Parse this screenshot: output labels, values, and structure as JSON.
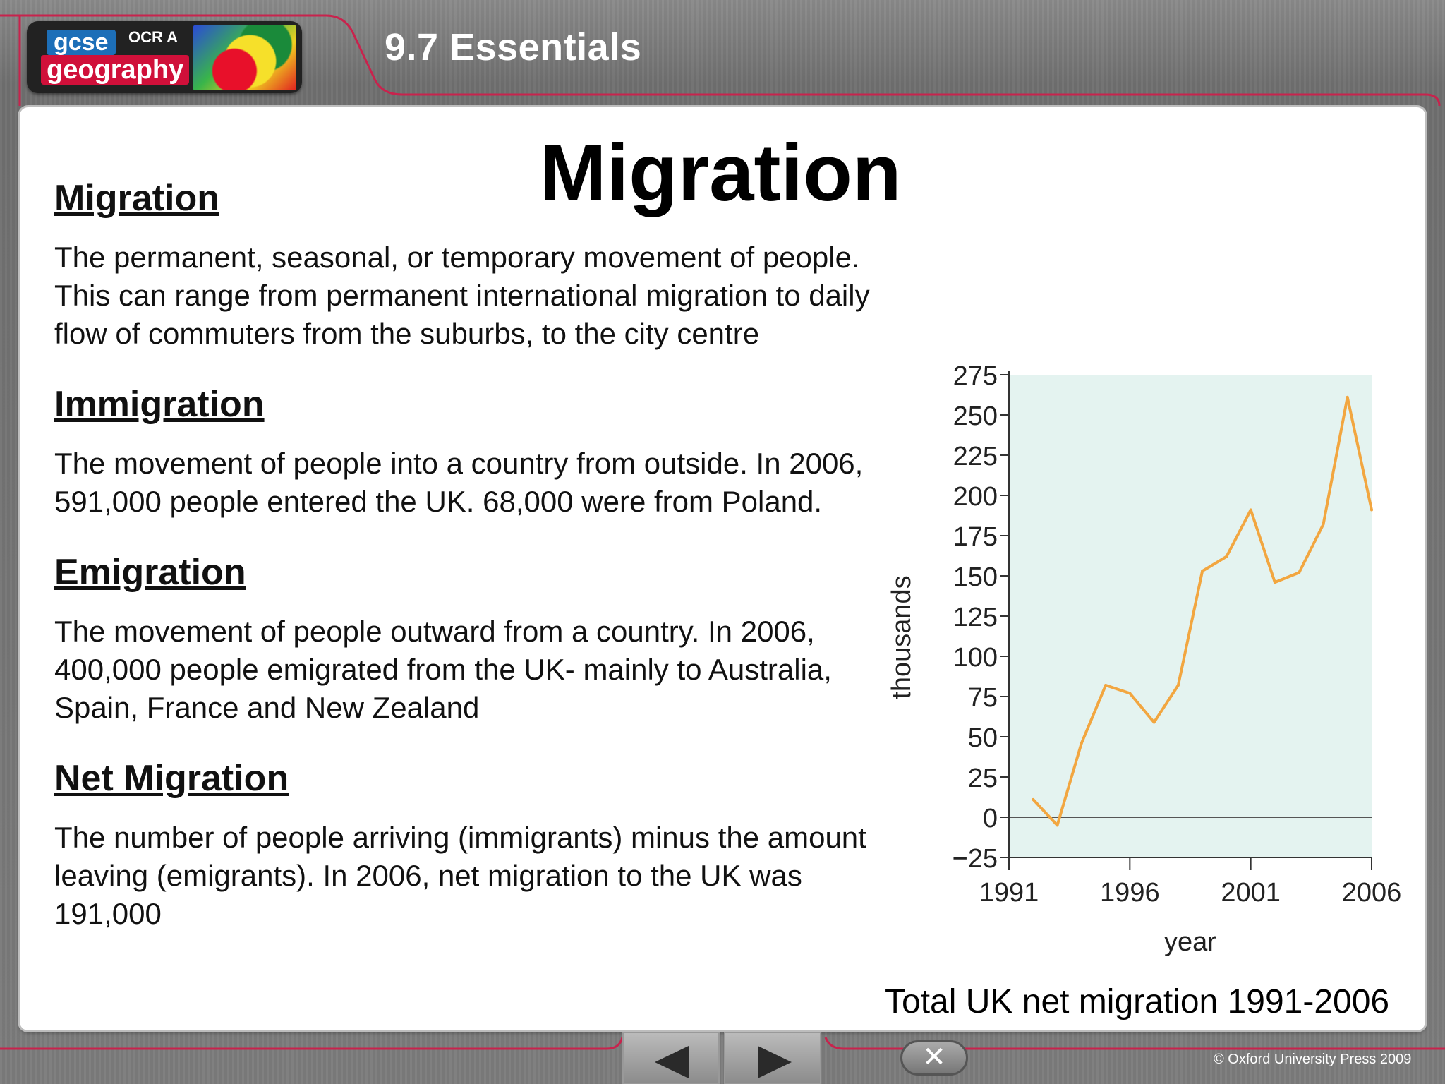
{
  "header": {
    "logo_top": "gcse",
    "logo_exam": "OCR A",
    "logo_bottom": "geography",
    "section": "9.7 Essentials"
  },
  "main": {
    "title": "Migration",
    "sections": [
      {
        "heading": "Migration",
        "text": "The permanent, seasonal, or temporary movement of people. This can range from permanent international migration to daily flow of commuters from the suburbs, to the city centre"
      },
      {
        "heading": "Immigration",
        "text": "The movement of people into a country from outside. In 2006, 591,000 people entered the UK. 68,000 were from Poland."
      },
      {
        "heading": "Emigration",
        "text": "The movement of people outward from a country. In 2006, 400,000 people emigrated from the UK- mainly to Australia, Spain, France and New Zealand"
      },
      {
        "heading": "Net Migration",
        "text": "The number of people arriving (immigrants) minus the amount leaving (emigrants). In 2006, net migration to the UK was 191,000"
      }
    ],
    "chart_caption": "Total UK net migration 1991-2006"
  },
  "chart_data": {
    "type": "line",
    "title": "",
    "xlabel": "year",
    "ylabel": "thousands",
    "xlim": [
      1991,
      2006
    ],
    "ylim": [
      -25,
      275
    ],
    "yticks": [
      -25,
      0,
      25,
      50,
      75,
      100,
      125,
      150,
      175,
      200,
      225,
      250,
      275
    ],
    "ytick_labels": [
      "−25",
      "0",
      "25",
      "50",
      "75",
      "100",
      "125",
      "150",
      "175",
      "200",
      "225",
      "250",
      "275"
    ],
    "xticks": [
      1991,
      1996,
      2001,
      2006
    ],
    "xtick_labels": [
      "1991",
      "1996",
      "2001",
      "2006"
    ],
    "x": [
      1992,
      1993,
      1994,
      1995,
      1996,
      1997,
      1998,
      1999,
      2000,
      2001,
      2002,
      2003,
      2004,
      2005,
      2006
    ],
    "series": [
      {
        "values": [
          11,
          -5,
          46,
          82,
          77,
          59,
          82,
          153,
          162,
          191,
          146,
          152,
          182,
          261,
          191
        ]
      }
    ],
    "line_color": "#f2a640",
    "background_color": "#e4f3f0",
    "grid": false
  },
  "footer": {
    "prev_label": "previous",
    "next_label": "next",
    "close_label": "✕",
    "copyright": "© Oxford University Press 2009"
  }
}
